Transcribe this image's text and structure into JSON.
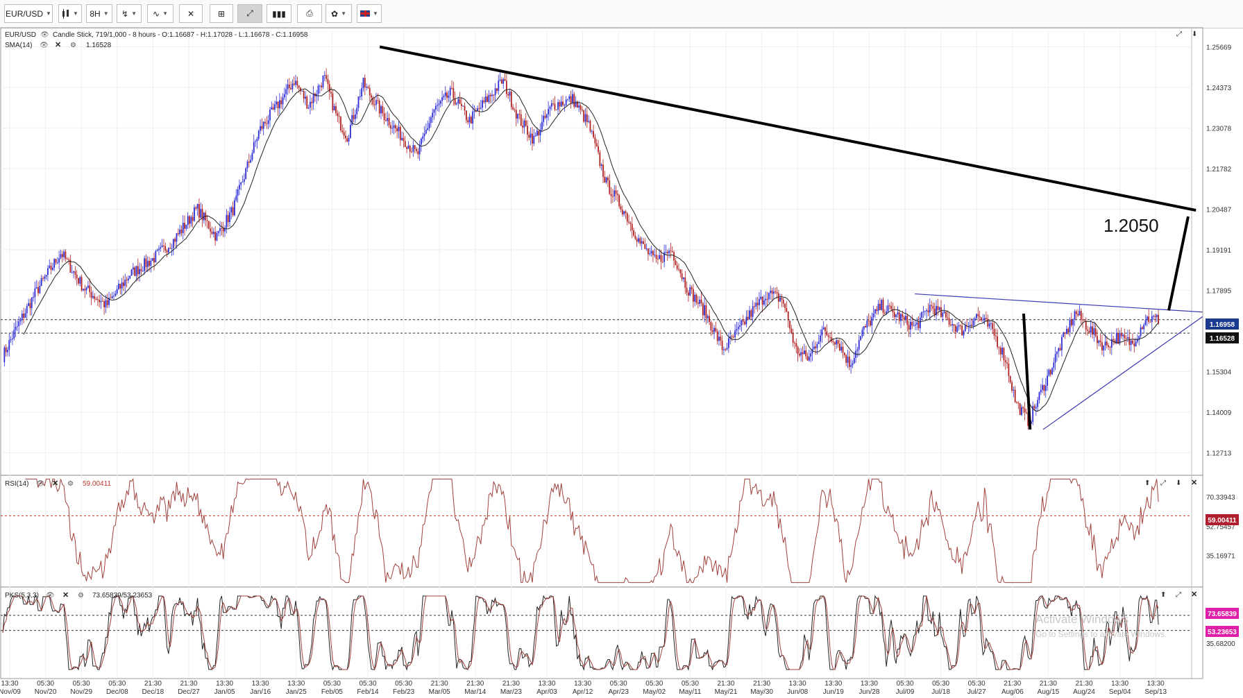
{
  "toolbar": {
    "symbol": "EUR/USD",
    "chart_style_icon": "candlestick-icon",
    "timeframe": "8H",
    "buttons": [
      "drawing-tools-icon",
      "indicators-icon",
      "compare-icon",
      "crosshair-icon",
      "zoom-fit-icon",
      "volume-icon",
      "print-icon",
      "settings-icon",
      "flag-uk-icon"
    ]
  },
  "main_panel": {
    "info": "EUR/USD",
    "description": "Candle Stick, 719/1,000 - 8 hours - O:1.16687 - H:1.17028 - L:1.16678 - C:1.16958",
    "sma_label": "SMA(14)",
    "sma_value": "1.16528",
    "price_ticks": [
      "1.25669",
      "1.24373",
      "1.23078",
      "1.21782",
      "1.20487",
      "1.19191",
      "1.17895",
      "1.16958",
      "1.16528",
      "1.15304",
      "1.14009",
      "1.12713"
    ],
    "annotation": "1.2050",
    "last_price_badge": "1.16958",
    "sma_badge": "1.16528"
  },
  "rsi_panel": {
    "label": "RSI(14)",
    "value": "59.00411",
    "ticks": [
      "70.33943",
      "59.00411",
      "52.75457",
      "35.16971"
    ],
    "badge": "59.00411"
  },
  "pks_panel": {
    "label": "PKS(5,3,3)",
    "value": "73.65839/53.23653",
    "ticks": [
      "73.65839",
      "53.23653",
      "35.68200"
    ],
    "badge1": "73.65839",
    "badge2": "53.23653"
  },
  "watermark": {
    "line1": "Activate Windows",
    "line2": "Go to Settings to activate Windows."
  },
  "x_axis": [
    {
      "time": "13:30",
      "date": "Nov/09"
    },
    {
      "time": "05:30",
      "date": "Nov/20"
    },
    {
      "time": "05:30",
      "date": "Nov/29"
    },
    {
      "time": "05:30",
      "date": "Dec/08"
    },
    {
      "time": "21:30",
      "date": "Dec/18"
    },
    {
      "time": "21:30",
      "date": "Dec/27"
    },
    {
      "time": "13:30",
      "date": "Jan/05"
    },
    {
      "time": "13:30",
      "date": "Jan/16"
    },
    {
      "time": "13:30",
      "date": "Jan/25"
    },
    {
      "time": "05:30",
      "date": "Feb/05"
    },
    {
      "time": "05:30",
      "date": "Feb/14"
    },
    {
      "time": "05:30",
      "date": "Feb/23"
    },
    {
      "time": "21:30",
      "date": "Mar/05"
    },
    {
      "time": "21:30",
      "date": "Mar/14"
    },
    {
      "time": "21:30",
      "date": "Mar/23"
    },
    {
      "time": "13:30",
      "date": "Apr/03"
    },
    {
      "time": "13:30",
      "date": "Apr/12"
    },
    {
      "time": "05:30",
      "date": "Apr/23"
    },
    {
      "time": "05:30",
      "date": "May/02"
    },
    {
      "time": "05:30",
      "date": "May/11"
    },
    {
      "time": "21:30",
      "date": "May/21"
    },
    {
      "time": "21:30",
      "date": "May/30"
    },
    {
      "time": "13:30",
      "date": "Jun/08"
    },
    {
      "time": "13:30",
      "date": "Jun/19"
    },
    {
      "time": "13:30",
      "date": "Jun/28"
    },
    {
      "time": "05:30",
      "date": "Jul/09"
    },
    {
      "time": "05:30",
      "date": "Jul/18"
    },
    {
      "time": "05:30",
      "date": "Jul/27"
    },
    {
      "time": "21:30",
      "date": "Aug/06"
    },
    {
      "time": "21:30",
      "date": "Aug/15"
    },
    {
      "time": "21:30",
      "date": "Aug/24"
    },
    {
      "time": "13:30",
      "date": "Sep/04"
    },
    {
      "time": "13:30",
      "date": "Sep/13"
    }
  ],
  "chart_data": {
    "type": "line",
    "note_series": "EUR/USD 8-hour close (approx.) with SMA(14), RSI(14), PKS(5,3,3)",
    "price_keypoints": [
      [
        0,
        1.158
      ],
      [
        12,
        1.168
      ],
      [
        25,
        1.178
      ],
      [
        45,
        1.191
      ],
      [
        62,
        1.18
      ],
      [
        80,
        1.174
      ],
      [
        98,
        1.184
      ],
      [
        116,
        1.189
      ],
      [
        132,
        1.195
      ],
      [
        150,
        1.205
      ],
      [
        165,
        1.196
      ],
      [
        178,
        1.205
      ],
      [
        198,
        1.23
      ],
      [
        212,
        1.238
      ],
      [
        225,
        1.246
      ],
      [
        236,
        1.238
      ],
      [
        248,
        1.247
      ],
      [
        258,
        1.234
      ],
      [
        266,
        1.228
      ],
      [
        278,
        1.245
      ],
      [
        292,
        1.236
      ],
      [
        308,
        1.228
      ],
      [
        320,
        1.222
      ],
      [
        332,
        1.236
      ],
      [
        346,
        1.242
      ],
      [
        360,
        1.233
      ],
      [
        376,
        1.241
      ],
      [
        386,
        1.246
      ],
      [
        398,
        1.234
      ],
      [
        410,
        1.227
      ],
      [
        424,
        1.238
      ],
      [
        440,
        1.24
      ],
      [
        452,
        1.232
      ],
      [
        466,
        1.213
      ],
      [
        480,
        1.204
      ],
      [
        492,
        1.194
      ],
      [
        504,
        1.188
      ],
      [
        516,
        1.192
      ],
      [
        528,
        1.18
      ],
      [
        542,
        1.172
      ],
      [
        556,
        1.16
      ],
      [
        566,
        1.165
      ],
      [
        578,
        1.172
      ],
      [
        590,
        1.178
      ],
      [
        602,
        1.176
      ],
      [
        612,
        1.16
      ],
      [
        622,
        1.157
      ],
      [
        632,
        1.166
      ],
      [
        644,
        1.163
      ],
      [
        654,
        1.155
      ],
      [
        664,
        1.166
      ],
      [
        678,
        1.174
      ],
      [
        690,
        1.171
      ],
      [
        704,
        1.167
      ],
      [
        716,
        1.174
      ],
      [
        728,
        1.17
      ],
      [
        740,
        1.166
      ],
      [
        752,
        1.171
      ],
      [
        764,
        1.166
      ],
      [
        774,
        1.157
      ],
      [
        782,
        1.143
      ],
      [
        792,
        1.137
      ],
      [
        804,
        1.149
      ],
      [
        816,
        1.161
      ],
      [
        828,
        1.172
      ],
      [
        838,
        1.167
      ],
      [
        850,
        1.161
      ],
      [
        860,
        1.164
      ],
      [
        872,
        1.162
      ],
      [
        882,
        1.17
      ],
      [
        892,
        1.1696
      ]
    ],
    "price_range": [
      1.121,
      1.261
    ],
    "rsi_range": [
      18,
      82
    ],
    "pks_range": [
      0,
      100
    ],
    "series": [
      {
        "name": "EUR/USD",
        "color": "#1a1a1a"
      },
      {
        "name": "SMA(14)",
        "color": "#222222"
      },
      {
        "name": "RSI(14)",
        "color": "#a0413c"
      },
      {
        "name": "PKS(5,3,3)",
        "color": "#a0413c"
      }
    ],
    "drawn_lines": [
      {
        "name": "long-term-resistance",
        "from": [
          291,
          1.2567
        ],
        "to": [
          921,
          1.2045
        ],
        "color": "#000000"
      },
      {
        "name": "triangle-upper",
        "from": [
          704,
          1.1778
        ],
        "to": [
          926,
          1.172
        ],
        "color": "#3a3ab0"
      },
      {
        "name": "triangle-lower",
        "from": [
          803,
          1.1345
        ],
        "to": [
          926,
          1.1705
        ],
        "color": "#3a3ab0"
      },
      {
        "name": "flagpole",
        "from": [
          788,
          1.1715
        ],
        "to": [
          793,
          1.1345
        ],
        "color": "#000000"
      },
      {
        "name": "projection",
        "from": [
          900,
          1.1725
        ],
        "to": [
          915,
          1.2025
        ],
        "color": "#000000"
      }
    ],
    "sma_level": 1.16528,
    "last_close": 1.16958,
    "rsi_level": 59.00411,
    "pks_levels": [
      73.65839,
      53.23653
    ]
  }
}
